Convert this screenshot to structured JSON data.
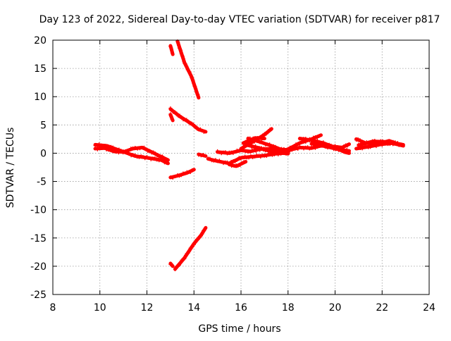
{
  "chart_data": {
    "type": "scatter",
    "title": "Day 123 of 2022, Sidereal Day-to-day VTEC variation (SDTVAR) for receiver p817",
    "xlabel": "GPS time / hours",
    "ylabel": "SDTVAR / TECUs",
    "xlim": [
      8,
      24
    ],
    "ylim": [
      -25,
      20
    ],
    "xticks": [
      8,
      10,
      12,
      14,
      16,
      18,
      20,
      22,
      24
    ],
    "yticks": [
      -25,
      -20,
      -15,
      -10,
      -5,
      0,
      5,
      10,
      15,
      20
    ],
    "grid": true,
    "legend": "none",
    "color": "#ff0000",
    "series": [
      {
        "x": [
          9.8,
          10.2,
          10.6,
          11.0,
          11.4,
          11.8,
          12.2,
          12.5,
          12.9
        ],
        "y": [
          0.8,
          0.9,
          0.3,
          0.2,
          0.8,
          1.0,
          0.2,
          -0.4,
          -1.2
        ]
      },
      {
        "x": [
          9.8,
          10.3,
          10.9,
          11.5,
          12.0,
          12.6,
          12.9
        ],
        "y": [
          1.5,
          1.3,
          0.4,
          -0.5,
          -0.8,
          -1.2,
          -1.8
        ]
      },
      {
        "x": [
          13.0,
          13.1
        ],
        "y": [
          19.0,
          17.5
        ]
      },
      {
        "x": [
          13.3,
          13.6,
          13.9,
          14.2
        ],
        "y": [
          19.8,
          16.0,
          13.5,
          9.8
        ]
      },
      {
        "x": [
          13.0,
          13.1
        ],
        "y": [
          6.8,
          5.8
        ]
      },
      {
        "x": [
          13.0,
          13.4,
          13.9,
          14.2,
          14.5
        ],
        "y": [
          7.8,
          6.5,
          5.2,
          4.2,
          3.8
        ]
      },
      {
        "x": [
          13.0,
          13.3,
          13.7,
          14.0
        ],
        "y": [
          -4.3,
          -4.0,
          -3.5,
          -2.9
        ]
      },
      {
        "x": [
          14.2,
          14.5
        ],
        "y": [
          -0.2,
          -0.5
        ]
      },
      {
        "x": [
          13.0,
          13.1
        ],
        "y": [
          -19.5,
          -20.0
        ]
      },
      {
        "x": [
          13.2,
          13.6,
          14.0,
          14.3,
          14.5
        ],
        "y": [
          -20.5,
          -18.5,
          -16.0,
          -14.5,
          -13.2
        ]
      },
      {
        "x": [
          14.6,
          15.0,
          15.5,
          16.0,
          16.5,
          17.0,
          17.5,
          18.0
        ],
        "y": [
          -1.0,
          -1.4,
          -1.8,
          -0.8,
          -0.6,
          -0.4,
          -0.1,
          0.1
        ]
      },
      {
        "x": [
          15.0,
          15.5,
          16.0,
          16.4,
          16.8,
          17.4,
          17.9
        ],
        "y": [
          0.2,
          0.0,
          0.5,
          0.3,
          0.7,
          0.8,
          0.6
        ]
      },
      {
        "x": [
          15.5,
          15.8,
          16.2
        ],
        "y": [
          -2.0,
          -2.3,
          -1.5
        ]
      },
      {
        "x": [
          16.0,
          16.5,
          17.0,
          17.3
        ],
        "y": [
          0.8,
          2.0,
          3.3,
          4.3
        ]
      },
      {
        "x": [
          16.1,
          16.6,
          17.0
        ],
        "y": [
          1.8,
          2.7,
          2.6
        ]
      },
      {
        "x": [
          16.2,
          16.7,
          17.2,
          17.6,
          18.0
        ],
        "y": [
          1.5,
          1.0,
          0.4,
          0.1,
          -0.1
        ]
      },
      {
        "x": [
          16.3,
          16.8,
          17.3,
          17.8,
          18.0
        ],
        "y": [
          2.6,
          2.0,
          1.3,
          0.5,
          0.0
        ]
      },
      {
        "x": [
          17.5,
          18.0,
          18.5,
          19.0,
          19.4
        ],
        "y": [
          0.2,
          0.7,
          1.8,
          2.5,
          3.2
        ]
      },
      {
        "x": [
          18.0,
          18.5,
          19.0,
          19.4,
          19.9,
          20.3,
          20.6
        ],
        "y": [
          0.5,
          1.0,
          0.9,
          1.3,
          1.2,
          1.0,
          1.6
        ]
      },
      {
        "x": [
          18.5,
          19.0,
          19.5,
          20.0,
          20.4,
          20.6
        ],
        "y": [
          2.6,
          2.3,
          1.8,
          1.0,
          0.2,
          0.0
        ]
      },
      {
        "x": [
          19.0,
          19.6,
          20.2,
          20.6
        ],
        "y": [
          1.7,
          1.2,
          0.6,
          0.4
        ]
      },
      {
        "x": [
          20.9,
          21.3,
          21.8,
          22.3,
          22.9
        ],
        "y": [
          2.5,
          1.8,
          1.6,
          2.2,
          1.3
        ]
      },
      {
        "x": [
          20.9,
          21.5,
          22.0,
          22.5,
          22.9
        ],
        "y": [
          0.8,
          1.2,
          1.6,
          1.8,
          1.5
        ]
      },
      {
        "x": [
          21.0,
          21.6,
          22.2,
          22.8
        ],
        "y": [
          1.4,
          2.1,
          2.0,
          1.4
        ]
      }
    ]
  }
}
